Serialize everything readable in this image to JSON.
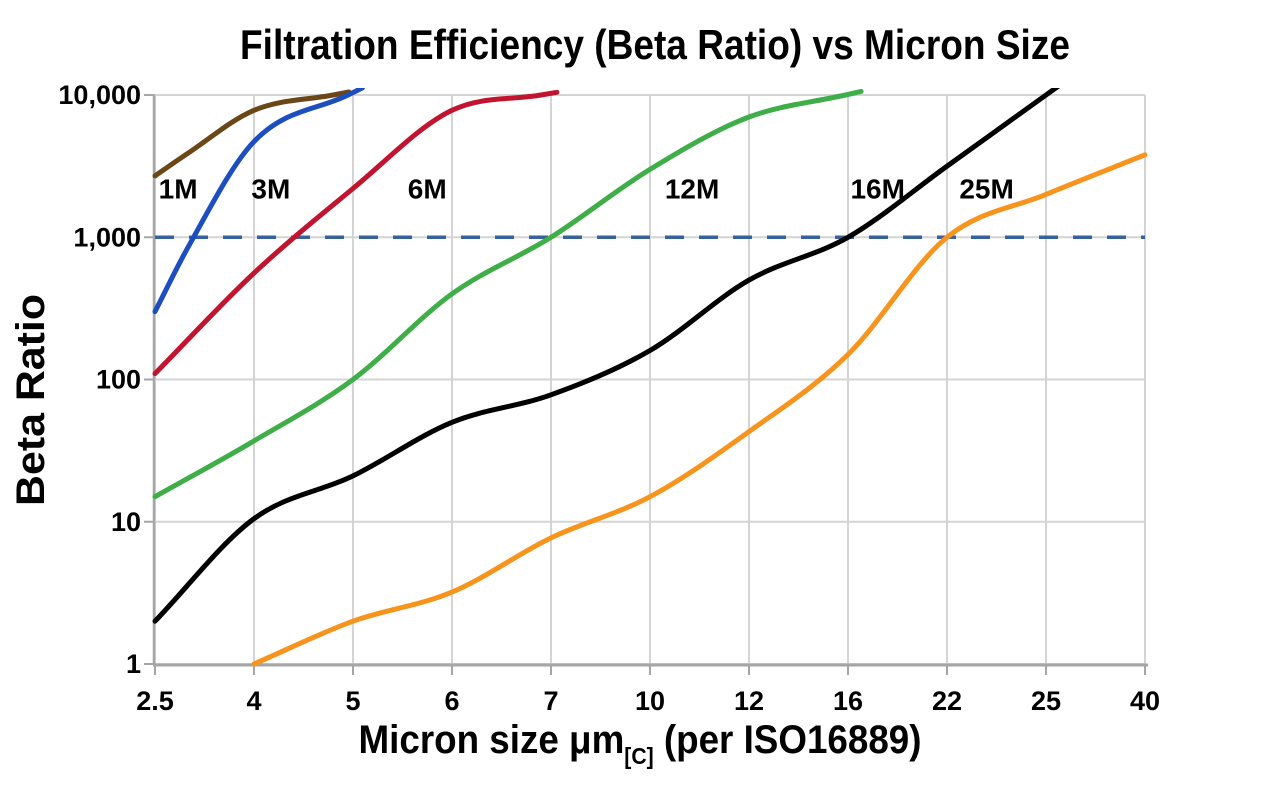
{
  "title": "Filtration Efficiency (Beta Ratio) vs Micron Size",
  "chart_data": {
    "type": "line",
    "title": "Filtration Efficiency (Beta Ratio) vs Micron Size",
    "xlabel": {
      "main": "Micron size μm",
      "subscript": "[C]",
      "suffix": " (per ISO16889)"
    },
    "ylabel": "Beta Ratio",
    "x_scale": "categorical",
    "y_scale": "log",
    "x_ticks": [
      2.5,
      4,
      5,
      6,
      7,
      10,
      12,
      16,
      22,
      25,
      40
    ],
    "x_tick_labels": [
      "2.5",
      "4",
      "5",
      "6",
      "7",
      "10",
      "12",
      "16",
      "22",
      "25",
      "40"
    ],
    "y_ticks": [
      1,
      10,
      100,
      1000,
      10000
    ],
    "y_tick_labels": [
      "1",
      "10",
      "100",
      "1,000",
      "10,000"
    ],
    "ylim": [
      1,
      10000
    ],
    "grid": true,
    "legend_position": "inline-labels",
    "reference_line": {
      "value": 1000,
      "style": "dashed",
      "color": "#36639C"
    },
    "colors": {
      "background": "#FFFFFF",
      "grid": "#D4D4D4",
      "axis": "#A6A6A6",
      "text": "#000000"
    },
    "series": [
      {
        "name": "1M",
        "color": "#6B4718",
        "label_pos": {
          "x": 2.85,
          "y": 2200
        },
        "points": [
          [
            2.5,
            2700
          ],
          [
            3,
            3900
          ],
          [
            4,
            7800
          ],
          [
            4.8,
            10000
          ]
        ]
      },
      {
        "name": "3M",
        "color": "#1C4EC0",
        "label_pos": {
          "x": 4.17,
          "y": 2200
        },
        "points": [
          [
            2.5,
            300
          ],
          [
            3,
            850
          ],
          [
            4,
            4700
          ],
          [
            4.95,
            10000
          ]
        ]
      },
      {
        "name": "6M",
        "color": "#C0142F",
        "label_pos": {
          "x": 5.75,
          "y": 2200
        },
        "points": [
          [
            2.5,
            110
          ],
          [
            4,
            560
          ],
          [
            5,
            2200
          ],
          [
            6,
            7800
          ],
          [
            6.9,
            10000
          ]
        ]
      },
      {
        "name": "12M",
        "color": "#3FAE49",
        "label_pos": {
          "x": 10.85,
          "y": 2200
        },
        "points": [
          [
            2.5,
            15
          ],
          [
            4,
            37
          ],
          [
            5,
            100
          ],
          [
            6,
            400
          ],
          [
            7,
            1000
          ],
          [
            10,
            3000
          ],
          [
            12,
            7000
          ],
          [
            15.9,
            10000
          ]
        ]
      },
      {
        "name": "16M",
        "color": "#000000",
        "label_pos": {
          "x": 17.8,
          "y": 2200
        },
        "points": [
          [
            2.5,
            2
          ],
          [
            4,
            10.5
          ],
          [
            5,
            21
          ],
          [
            6,
            50
          ],
          [
            7,
            78
          ],
          [
            10,
            160
          ],
          [
            12,
            500
          ],
          [
            16,
            1000
          ],
          [
            22,
            3160
          ],
          [
            25,
            10000
          ]
        ]
      },
      {
        "name": "25M",
        "color": "#F7941D",
        "label_pos": {
          "x": 23.2,
          "y": 2200
        },
        "points": [
          [
            4,
            1
          ],
          [
            5,
            2
          ],
          [
            6,
            3.2
          ],
          [
            7,
            7.7
          ],
          [
            10,
            15
          ],
          [
            12,
            43
          ],
          [
            16,
            150
          ],
          [
            22,
            1000
          ],
          [
            25,
            2000
          ],
          [
            40,
            3800
          ]
        ]
      }
    ]
  }
}
